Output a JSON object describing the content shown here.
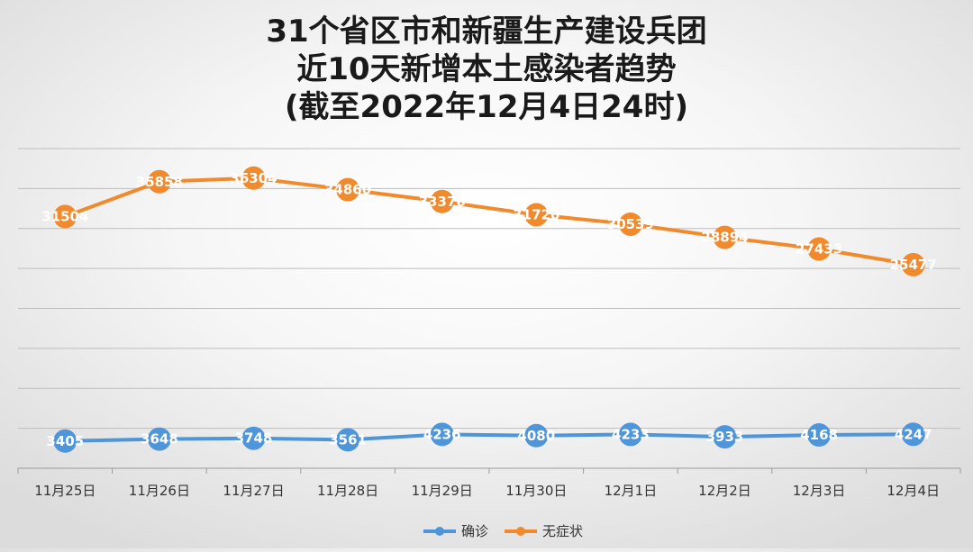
{
  "chart_data": {
    "type": "line",
    "title_lines": [
      "31个省区市和新疆生产建设兵团",
      "近10天新增本土感染者趋势",
      "(截至2022年12月4日24时)"
    ],
    "categories": [
      "11月25日",
      "11月26日",
      "11月27日",
      "11月28日",
      "11月29日",
      "11月30日",
      "12月1日",
      "12月2日",
      "12月3日",
      "12月4日"
    ],
    "series": [
      {
        "name": "确诊",
        "color": "#4e95d9",
        "values": [
          3405,
          3648,
          3748,
          3561,
          4236,
          4080,
          4233,
          3933,
          4168,
          4247
        ]
      },
      {
        "name": "无症状",
        "color": "#f08a2c",
        "values": [
          31504,
          35858,
          36304,
          34860,
          33376,
          31720,
          30539,
          28894,
          27433,
          25477
        ]
      }
    ],
    "ylim": [
      0,
      40000
    ],
    "grid": true,
    "legend_position": "bottom",
    "xlabel": "",
    "ylabel": ""
  }
}
